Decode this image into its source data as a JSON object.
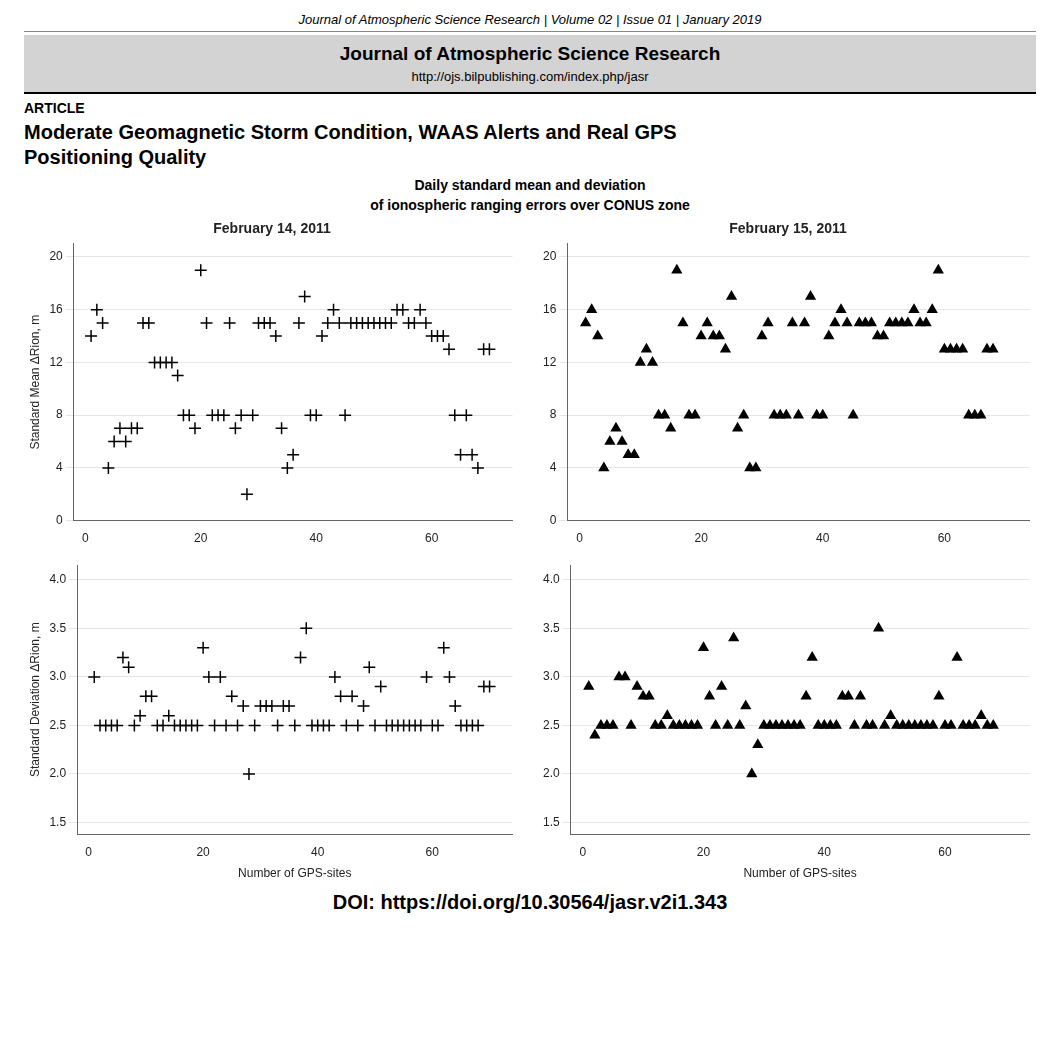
{
  "title": "Daily standard mean and deviation\nof ionospheric ranging errors over CONUS zone",
  "annotations": [
    "Journal of Atmospheric Science Research | Volume 02 | Issue 01 | January 2019",
    "Journal of Atmospheric Science Research",
    "http://ojs.bilpublishing.com/index.php/jasr",
    "ARTICLE",
    "Moderate Geomagnetic Storm Condition, WAAS Alerts and Real GPS\nPositioning Quality",
    "DOI: https://doi.org/10.30564/jasr.v2i1.343"
  ],
  "chart_data": [
    {
      "type": "scatter",
      "title": "February 14, 2011",
      "y_label": "Standard Mean ΔRion, m",
      "marker": "plus",
      "color": "#000000",
      "grid": "y",
      "xlim": [
        -2,
        74
      ],
      "xticks": [
        0,
        20,
        40,
        60
      ],
      "ylim": [
        0,
        21
      ],
      "yticks": [
        0,
        4,
        8,
        12,
        16,
        20
      ],
      "x": [
        1,
        2,
        3,
        4,
        5,
        6,
        7,
        8,
        9,
        10,
        11,
        12,
        13,
        14,
        15,
        16,
        17,
        18,
        19,
        20,
        21,
        22,
        23,
        24,
        25,
        26,
        27,
        28,
        29,
        30,
        31,
        32,
        33,
        34,
        35,
        36,
        37,
        38,
        39,
        40,
        41,
        42,
        43,
        44,
        45,
        46,
        47,
        48,
        49,
        50,
        51,
        52,
        53,
        54,
        55,
        56,
        57,
        58,
        59,
        60,
        61,
        62,
        63,
        64,
        65,
        66,
        67,
        68,
        69,
        70
      ],
      "values": [
        14,
        16,
        15,
        4,
        6,
        7,
        6,
        7,
        7,
        15,
        15,
        12,
        12,
        12,
        12,
        11,
        8,
        8,
        7,
        19,
        15,
        8,
        8,
        8,
        15,
        7,
        8,
        2,
        8,
        15,
        15,
        15,
        14,
        7,
        4,
        5,
        15,
        17,
        8,
        8,
        14,
        15,
        16,
        15,
        8,
        15,
        15,
        15,
        15,
        15,
        15,
        15,
        15,
        16,
        16,
        15,
        15,
        16,
        15,
        14,
        14,
        14,
        13,
        8,
        5,
        8,
        5,
        4,
        13,
        13
      ]
    },
    {
      "type": "scatter",
      "title": "February 15, 2011",
      "marker": "triangle",
      "color": "#000000",
      "grid": "y",
      "xlim": [
        -2,
        74
      ],
      "xticks": [
        0,
        20,
        40,
        60
      ],
      "ylim": [
        0,
        21
      ],
      "yticks": [
        0,
        4,
        8,
        12,
        16,
        20
      ],
      "x": [
        1,
        2,
        3,
        4,
        5,
        6,
        7,
        8,
        9,
        10,
        11,
        12,
        13,
        14,
        15,
        16,
        17,
        18,
        19,
        20,
        21,
        22,
        23,
        24,
        25,
        26,
        27,
        28,
        29,
        30,
        31,
        32,
        33,
        34,
        35,
        36,
        37,
        38,
        39,
        40,
        41,
        42,
        43,
        44,
        45,
        46,
        47,
        48,
        49,
        50,
        51,
        52,
        53,
        54,
        55,
        56,
        57,
        58,
        59,
        60,
        61,
        62,
        63,
        64,
        65,
        66,
        67,
        68
      ],
      "values": [
        15,
        16,
        14,
        4,
        6,
        7,
        6,
        5,
        5,
        12,
        13,
        12,
        8,
        8,
        7,
        19,
        15,
        8,
        8,
        14,
        15,
        14,
        14,
        13,
        17,
        7,
        8,
        4,
        4,
        14,
        15,
        8,
        8,
        8,
        15,
        8,
        15,
        17,
        8,
        8,
        14,
        15,
        16,
        15,
        8,
        15,
        15,
        15,
        14,
        14,
        15,
        15,
        15,
        15,
        16,
        15,
        15,
        16,
        19,
        13,
        13,
        13,
        13,
        8,
        8,
        8,
        13,
        13
      ]
    },
    {
      "type": "scatter",
      "x_label": "Number of GPS-sites",
      "y_label": "Standard Deviation ΔRion, m",
      "marker": "plus",
      "color": "#000000",
      "grid": "y",
      "xlim": [
        -2,
        74
      ],
      "xticks": [
        0,
        20,
        40,
        60
      ],
      "ylim": [
        1.38,
        4.15
      ],
      "yticks": [
        1.5,
        {
          "value": 2.0,
          "label": "2.0"
        },
        2.5,
        {
          "value": 3.0,
          "label": "3.0"
        },
        3.5,
        {
          "value": 4.0,
          "label": "4.0"
        }
      ],
      "x": [
        1,
        2,
        3,
        4,
        5,
        6,
        7,
        8,
        9,
        10,
        11,
        12,
        13,
        14,
        15,
        16,
        17,
        18,
        19,
        20,
        21,
        22,
        23,
        24,
        25,
        26,
        27,
        28,
        29,
        30,
        31,
        32,
        33,
        34,
        35,
        36,
        37,
        38,
        39,
        40,
        41,
        42,
        43,
        44,
        45,
        46,
        47,
        48,
        49,
        50,
        51,
        52,
        53,
        54,
        55,
        56,
        57,
        58,
        59,
        60,
        61,
        62,
        63,
        64,
        65,
        66,
        67,
        68,
        69,
        70
      ],
      "values": [
        3.0,
        2.5,
        2.5,
        2.5,
        2.5,
        3.2,
        3.1,
        2.5,
        2.6,
        2.8,
        2.8,
        2.5,
        2.5,
        2.6,
        2.5,
        2.5,
        2.5,
        2.5,
        2.5,
        3.3,
        3.0,
        2.5,
        3.0,
        2.5,
        2.8,
        2.5,
        2.7,
        2.0,
        2.5,
        2.7,
        2.7,
        2.7,
        2.5,
        2.7,
        2.7,
        2.5,
        3.2,
        3.5,
        2.5,
        2.5,
        2.5,
        2.5,
        3.0,
        2.8,
        2.5,
        2.8,
        2.5,
        2.7,
        3.1,
        2.5,
        2.9,
        2.5,
        2.5,
        2.5,
        2.5,
        2.5,
        2.5,
        2.5,
        3.0,
        2.5,
        2.5,
        3.3,
        3.0,
        2.7,
        2.5,
        2.5,
        2.5,
        2.5,
        2.9,
        2.9
      ]
    },
    {
      "type": "scatter",
      "x_label": "Number of GPS-sites",
      "marker": "triangle",
      "color": "#000000",
      "grid": "y",
      "xlim": [
        -2,
        74
      ],
      "xticks": [
        0,
        20,
        40,
        60
      ],
      "ylim": [
        1.38,
        4.15
      ],
      "yticks": [
        1.5,
        {
          "value": 2.0,
          "label": "2.0"
        },
        2.5,
        {
          "value": 3.0,
          "label": "3.0"
        },
        3.5,
        {
          "value": 4.0,
          "label": "4.0"
        }
      ],
      "x": [
        1,
        2,
        3,
        4,
        5,
        6,
        7,
        8,
        9,
        10,
        11,
        12,
        13,
        14,
        15,
        16,
        17,
        18,
        19,
        20,
        21,
        22,
        23,
        24,
        25,
        26,
        27,
        28,
        29,
        30,
        31,
        32,
        33,
        34,
        35,
        36,
        37,
        38,
        39,
        40,
        41,
        42,
        43,
        44,
        45,
        46,
        47,
        48,
        49,
        50,
        51,
        52,
        53,
        54,
        55,
        56,
        57,
        58,
        59,
        60,
        61,
        62,
        63,
        64,
        65,
        66,
        67,
        68
      ],
      "values": [
        2.9,
        2.4,
        2.5,
        2.5,
        2.5,
        3.0,
        3.0,
        2.5,
        2.9,
        2.8,
        2.8,
        2.5,
        2.5,
        2.6,
        2.5,
        2.5,
        2.5,
        2.5,
        2.5,
        3.3,
        2.8,
        2.5,
        2.9,
        2.5,
        3.4,
        2.5,
        2.7,
        2.0,
        2.3,
        2.5,
        2.5,
        2.5,
        2.5,
        2.5,
        2.5,
        2.5,
        2.8,
        3.2,
        2.5,
        2.5,
        2.5,
        2.5,
        2.8,
        2.8,
        2.5,
        2.8,
        2.5,
        2.5,
        3.5,
        2.5,
        2.6,
        2.5,
        2.5,
        2.5,
        2.5,
        2.5,
        2.5,
        2.5,
        2.8,
        2.5,
        2.5,
        3.2,
        2.5,
        2.5,
        2.5,
        2.6,
        2.5,
        2.5
      ]
    }
  ]
}
